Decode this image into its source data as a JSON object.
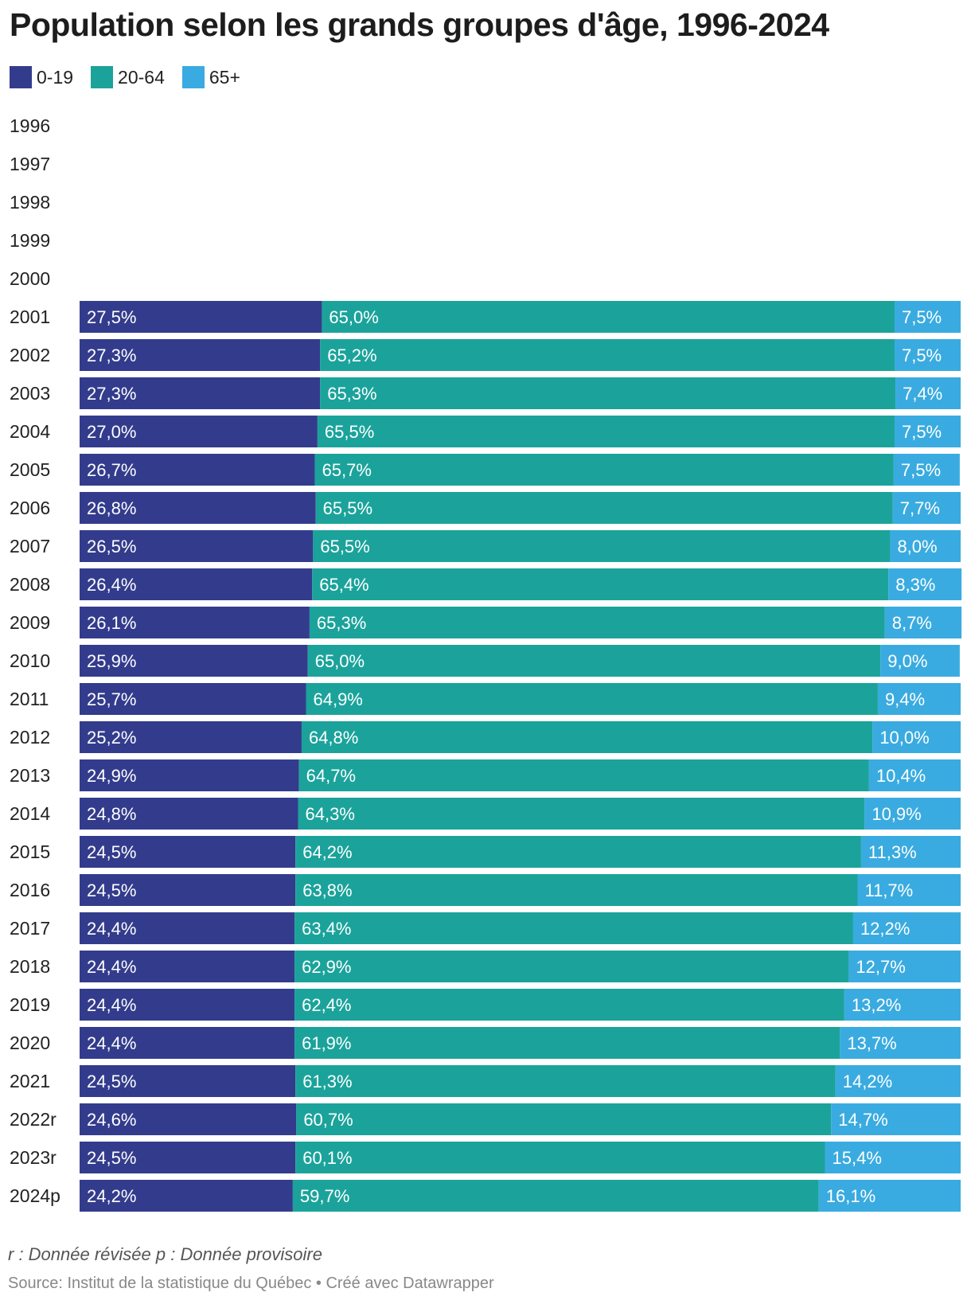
{
  "chart_data": {
    "type": "bar",
    "orientation": "horizontal",
    "stacked": true,
    "title": "Population selon les grands groupes d'âge, 1996-2024",
    "legend_position": "top-left",
    "categories": [
      "1996",
      "1997",
      "1998",
      "1999",
      "2000",
      "2001",
      "2002",
      "2003",
      "2004",
      "2005",
      "2006",
      "2007",
      "2008",
      "2009",
      "2010",
      "2011",
      "2012",
      "2013",
      "2014",
      "2015",
      "2016",
      "2017",
      "2018",
      "2019",
      "2020",
      "2021",
      "2022r",
      "2023r",
      "2024p"
    ],
    "series": [
      {
        "name": "0-19",
        "color": "#333c8c",
        "values": [
          null,
          null,
          null,
          null,
          null,
          27.5,
          27.3,
          27.3,
          27.0,
          26.7,
          26.8,
          26.5,
          26.4,
          26.1,
          25.9,
          25.7,
          25.2,
          24.9,
          24.8,
          24.5,
          24.5,
          24.4,
          24.4,
          24.4,
          24.4,
          24.5,
          24.6,
          24.5,
          24.2
        ],
        "labels": [
          "",
          "",
          "",
          "",
          "",
          "27,5%",
          "27,3%",
          "27,3%",
          "27,0%",
          "26,7%",
          "26,8%",
          "26,5%",
          "26,4%",
          "26,1%",
          "25,9%",
          "25,7%",
          "25,2%",
          "24,9%",
          "24,8%",
          "24,5%",
          "24,5%",
          "24,4%",
          "24,4%",
          "24,4%",
          "24,4%",
          "24,5%",
          "24,6%",
          "24,5%",
          "24,2%"
        ]
      },
      {
        "name": "20-64",
        "color": "#1ba39b",
        "values": [
          null,
          null,
          null,
          null,
          null,
          65.0,
          65.2,
          65.3,
          65.5,
          65.7,
          65.5,
          65.5,
          65.4,
          65.3,
          65.0,
          64.9,
          64.8,
          64.7,
          64.3,
          64.2,
          63.8,
          63.4,
          62.9,
          62.4,
          61.9,
          61.3,
          60.7,
          60.1,
          59.7
        ],
        "labels": [
          "",
          "",
          "",
          "",
          "",
          "65,0%",
          "65,2%",
          "65,3%",
          "65,5%",
          "65,7%",
          "65,5%",
          "65,5%",
          "65,4%",
          "65,3%",
          "65,0%",
          "64,9%",
          "64,8%",
          "64,7%",
          "64,3%",
          "64,2%",
          "63,8%",
          "63,4%",
          "62,9%",
          "62,4%",
          "61,9%",
          "61,3%",
          "60,7%",
          "60,1%",
          "59,7%"
        ]
      },
      {
        "name": "65+",
        "color": "#3aabe0",
        "values": [
          null,
          null,
          null,
          null,
          null,
          7.5,
          7.5,
          7.4,
          7.5,
          7.5,
          7.7,
          8.0,
          8.3,
          8.7,
          9.0,
          9.4,
          10.0,
          10.4,
          10.9,
          11.3,
          11.7,
          12.2,
          12.7,
          13.2,
          13.7,
          14.2,
          14.7,
          15.4,
          16.1
        ],
        "labels": [
          "",
          "",
          "",
          "",
          "",
          "7,5%",
          "7,5%",
          "7,4%",
          "7,5%",
          "7,5%",
          "7,7%",
          "8,0%",
          "8,3%",
          "8,7%",
          "9,0%",
          "9,4%",
          "10,0%",
          "10,4%",
          "10,9%",
          "11,3%",
          "11,7%",
          "12,2%",
          "12,7%",
          "13,2%",
          "13,7%",
          "14,2%",
          "14,7%",
          "15,4%",
          "16,1%"
        ]
      }
    ],
    "xlim": [
      0,
      100
    ],
    "note": "r : Donnée révisée p : Donnée provisoire",
    "source": "Source: Institut de la statistique du Québec • Créé avec Datawrapper"
  }
}
